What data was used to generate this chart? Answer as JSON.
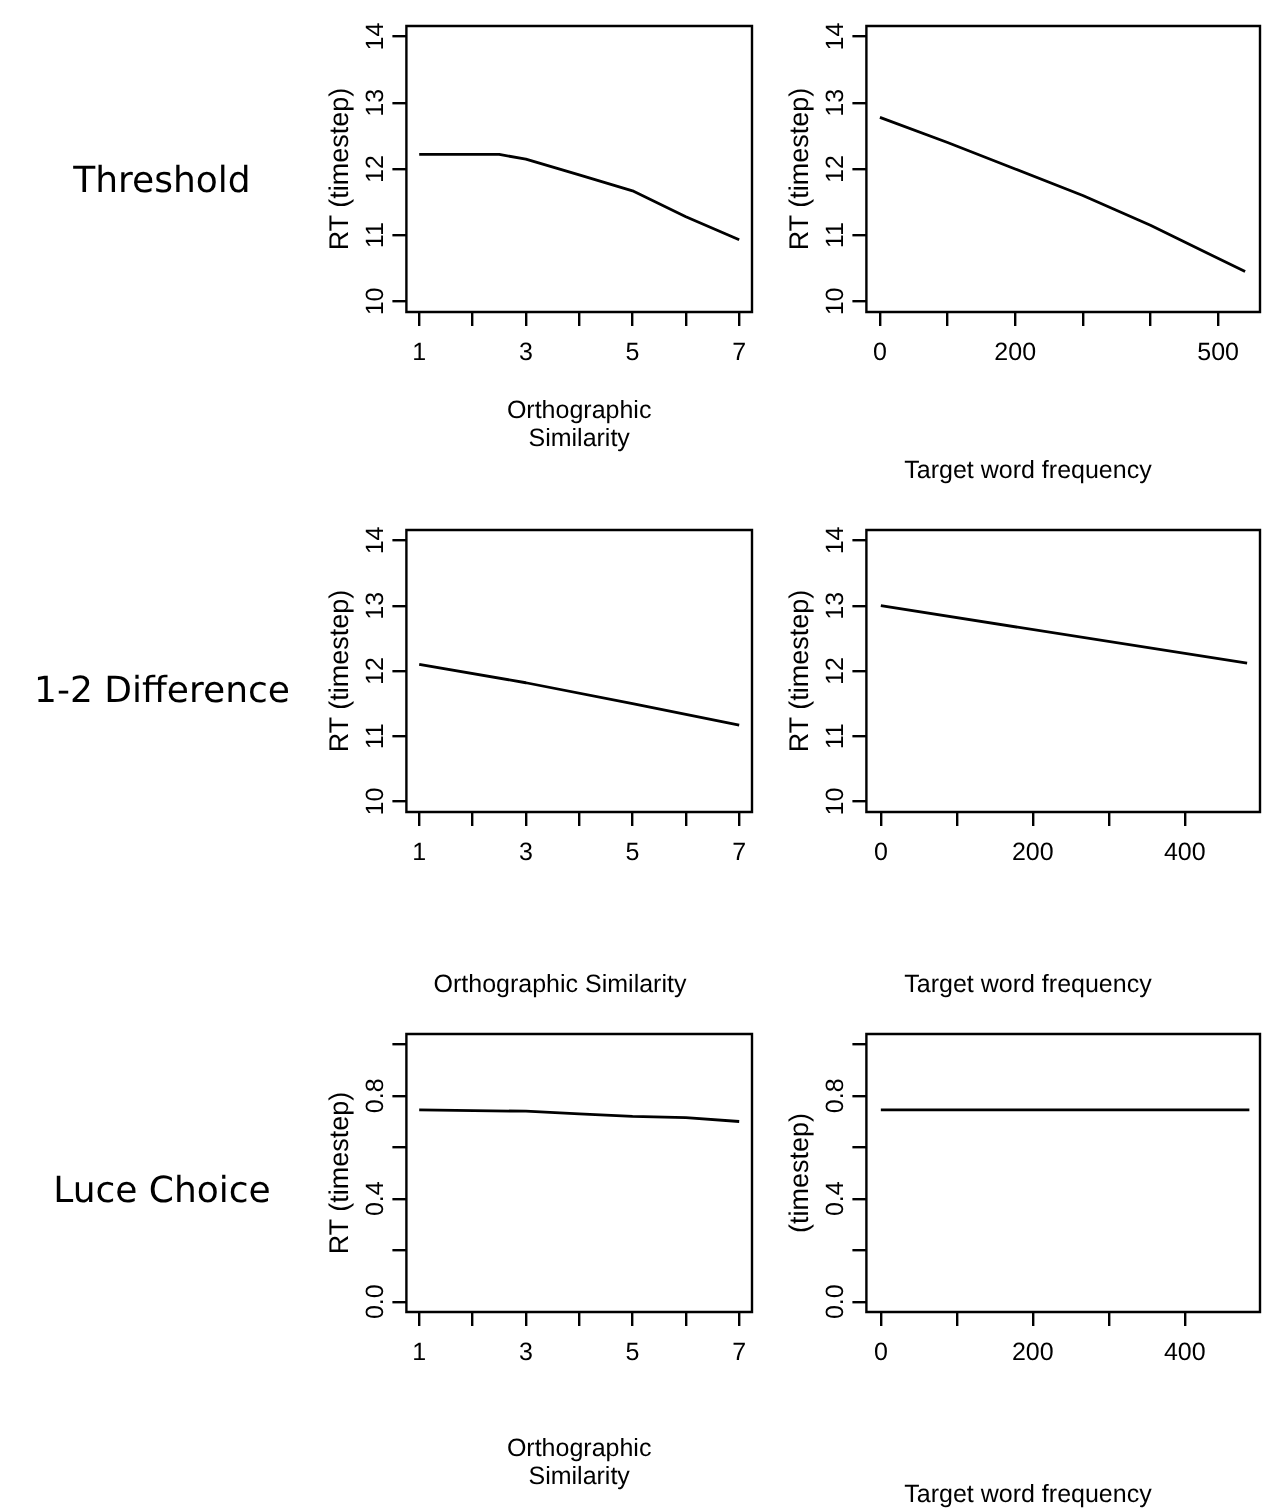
{
  "chart_data": [
    {
      "type": "line",
      "annotations": [
        "Threshold"
      ],
      "xlabel": "Orthographic Similarity",
      "ylabel": "RT (timestep)",
      "color": "#000000",
      "x": [
        1,
        2,
        2.5,
        3,
        4,
        5,
        6,
        7
      ],
      "values": [
        12.22,
        12.22,
        12.22,
        12.15,
        11.91,
        11.67,
        11.28,
        10.93
      ],
      "xlim": [
        0.76,
        7.24
      ],
      "xticks": [
        1,
        {
          "value": 2,
          "label": null
        },
        3,
        {
          "value": 4,
          "label": null
        },
        5,
        {
          "value": 6,
          "label": null
        },
        7
      ],
      "ylim": [
        9.84,
        14.16
      ],
      "yticks": [
        10,
        11,
        12,
        13,
        14
      ]
    },
    {
      "type": "line",
      "xlabel": "Target word frequency",
      "ylabel": "RT (timestep)",
      "color": "#000000",
      "x": [
        0,
        100,
        200,
        300,
        400,
        540
      ],
      "values": [
        12.78,
        12.4,
        12.0,
        11.6,
        11.15,
        10.45
      ],
      "xlim": [
        -20,
        562
      ],
      "xticks": [
        0,
        {
          "value": 100,
          "label": null
        },
        200,
        {
          "value": 300,
          "label": null
        },
        {
          "value": 400,
          "label": null
        },
        500
      ],
      "ylim": [
        9.84,
        14.16
      ],
      "yticks": [
        10,
        11,
        12,
        13,
        14
      ]
    },
    {
      "type": "line",
      "annotations": [
        "1-2 Difference"
      ],
      "xlabel": "Orthographic Similarity",
      "ylabel": "RT (timestep)",
      "color": "#000000",
      "x": [
        1,
        3,
        5,
        7
      ],
      "values": [
        12.1,
        11.82,
        11.5,
        11.17
      ],
      "xlim": [
        0.76,
        7.24
      ],
      "xticks": [
        1,
        {
          "value": 2,
          "label": null
        },
        3,
        {
          "value": 4,
          "label": null
        },
        5,
        {
          "value": 6,
          "label": null
        },
        7
      ],
      "ylim": [
        9.84,
        14.16
      ],
      "yticks": [
        10,
        11,
        12,
        13,
        14
      ]
    },
    {
      "type": "line",
      "xlabel": "Target word frequency",
      "ylabel": "RT (timestep)",
      "color": "#000000",
      "x": [
        0,
        482
      ],
      "values": [
        13.0,
        12.12
      ],
      "xlim": [
        -19,
        499
      ],
      "xticks": [
        0,
        {
          "value": 100,
          "label": null
        },
        200,
        {
          "value": 300,
          "label": null
        },
        400
      ],
      "ylim": [
        9.84,
        14.16
      ],
      "yticks": [
        10,
        11,
        12,
        13,
        14
      ]
    },
    {
      "type": "line",
      "annotations": [
        "Luce Choice"
      ],
      "xlabel": "Orthographic Similarity",
      "ylabel": "RT (timestep)",
      "color": "#000000",
      "x": [
        1,
        3,
        4,
        5,
        6,
        7
      ],
      "values": [
        0.745,
        0.74,
        0.73,
        0.72,
        0.715,
        0.7
      ],
      "xlim": [
        0.76,
        7.24
      ],
      "xticks": [
        1,
        {
          "value": 2,
          "label": null
        },
        3,
        {
          "value": 4,
          "label": null
        },
        5,
        {
          "value": 6,
          "label": null
        },
        7
      ],
      "ylim": [
        -0.04,
        1.04
      ],
      "yticks": [
        {
          "value": 0,
          "label": "0.0"
        },
        {
          "value": 0.2,
          "label": null
        },
        0.4,
        {
          "value": 0.6,
          "label": null
        },
        0.8,
        {
          "value": 1.0,
          "label": null
        }
      ]
    },
    {
      "type": "line",
      "xlabel": "Target word frequency",
      "ylabel": "(timestep)",
      "color": "#000000",
      "x": [
        0,
        485
      ],
      "values": [
        0.745,
        0.745
      ],
      "xlim": [
        -19,
        499
      ],
      "xticks": [
        0,
        {
          "value": 100,
          "label": null
        },
        200,
        {
          "value": 300,
          "label": null
        },
        400
      ],
      "ylim": [
        -0.04,
        1.04
      ],
      "yticks": [
        {
          "value": 0,
          "label": "0.0"
        },
        {
          "value": 0.2,
          "label": null
        },
        0.4,
        {
          "value": 0.6,
          "label": null
        },
        0.8,
        {
          "value": 1.0,
          "label": null
        }
      ]
    }
  ]
}
